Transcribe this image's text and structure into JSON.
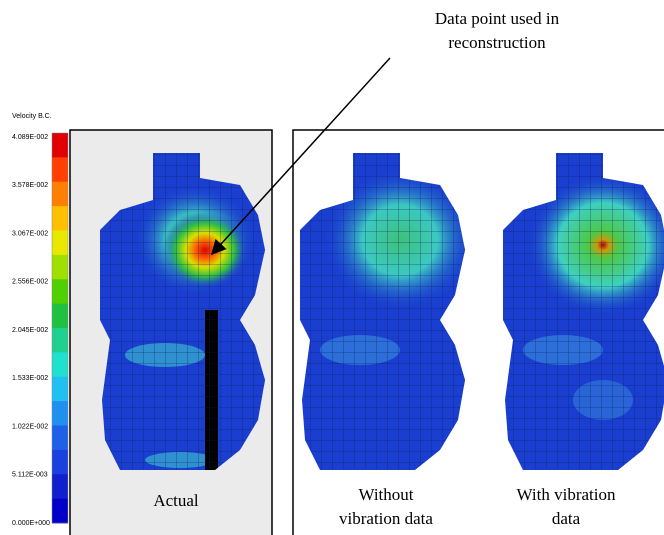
{
  "colorbar": {
    "title": "Velocity B.C.",
    "ticks": [
      "4.089E-002",
      "3.578E-002",
      "3.067E-002",
      "2.556E-002",
      "2.045E-002",
      "1.533E-002",
      "1.022E-002",
      "5.112E-003",
      "0.000E+000"
    ]
  },
  "annotation": [
    "Data point used in",
    "reconstruction"
  ],
  "panels": [
    {
      "label": [
        "Actual"
      ]
    },
    {
      "label": [
        "Without",
        "vibration data"
      ]
    },
    {
      "label": [
        "With vibration",
        "data"
      ]
    }
  ]
}
